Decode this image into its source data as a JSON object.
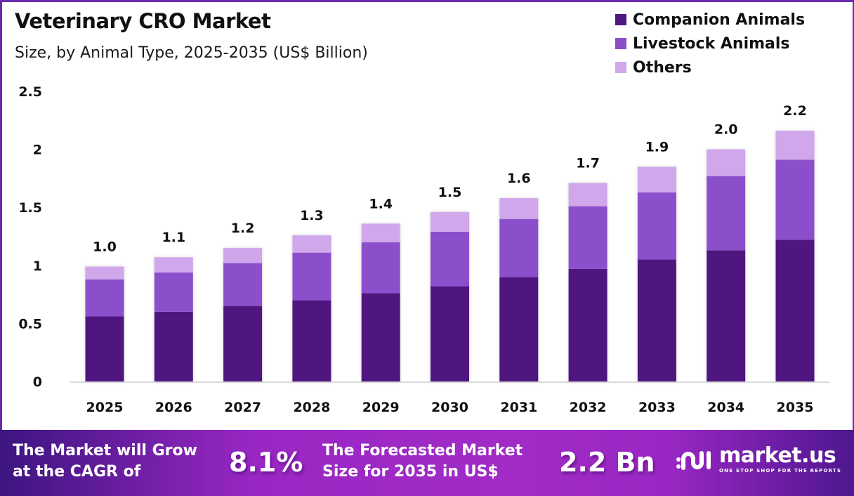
{
  "header": {
    "title": "Veterinary  CRO Market",
    "subtitle": "Size, by Animal Type, 2025-2035 (US$ Billion)"
  },
  "legend": [
    {
      "label": "Companion Animals",
      "color": "#4f1780"
    },
    {
      "label": "Livestock Animals",
      "color": "#8b4fcb"
    },
    {
      "label": "Others",
      "color": "#d0a7ea"
    }
  ],
  "chart_data": {
    "type": "bar",
    "stacked": true,
    "title": "Veterinary CRO Market",
    "subtitle": "Size, by Animal Type, 2025-2035 (US$ Billion)",
    "xlabel": "",
    "ylabel": "",
    "ylim": [
      0,
      2.5
    ],
    "yticks": [
      0,
      0.5,
      1,
      1.5,
      2,
      2.5
    ],
    "ytick_labels": [
      "0",
      "0.5",
      "1",
      "1.5",
      "2",
      "2.5"
    ],
    "grid": false,
    "legend_position": "top-right",
    "categories": [
      "2025",
      "2026",
      "2027",
      "2028",
      "2029",
      "2030",
      "2031",
      "2032",
      "2033",
      "2034",
      "2035"
    ],
    "series": [
      {
        "name": "Companion Animals",
        "color": "#4f1780",
        "values": [
          0.56,
          0.6,
          0.65,
          0.7,
          0.76,
          0.82,
          0.9,
          0.97,
          1.05,
          1.13,
          1.22
        ]
      },
      {
        "name": "Livestock Animals",
        "color": "#8b4fcb",
        "values": [
          0.32,
          0.34,
          0.37,
          0.41,
          0.44,
          0.47,
          0.5,
          0.54,
          0.58,
          0.64,
          0.69
        ]
      },
      {
        "name": "Others",
        "color": "#d0a7ea",
        "values": [
          0.11,
          0.13,
          0.13,
          0.15,
          0.16,
          0.17,
          0.18,
          0.2,
          0.22,
          0.23,
          0.25
        ]
      }
    ],
    "totals": [
      1.0,
      1.1,
      1.2,
      1.3,
      1.4,
      1.5,
      1.6,
      1.7,
      1.9,
      2.0,
      2.2
    ],
    "total_labels": [
      "1.0",
      "1.1",
      "1.2",
      "1.3",
      "1.4",
      "1.5",
      "1.6",
      "1.7",
      "1.9",
      "2.0",
      "2.2"
    ]
  },
  "footer": {
    "cagr_text_line1": "The Market will Grow",
    "cagr_text_line2": "at the CAGR of",
    "cagr_value": "8.1%",
    "forecast_text_line1": "The Forecasted Market",
    "forecast_text_line2": "Size for 2035 in US$",
    "forecast_value": "2.2 Bn",
    "brand_name": "market.us",
    "brand_tagline": "ONE STOP SHOP FOR THE REPORTS"
  }
}
